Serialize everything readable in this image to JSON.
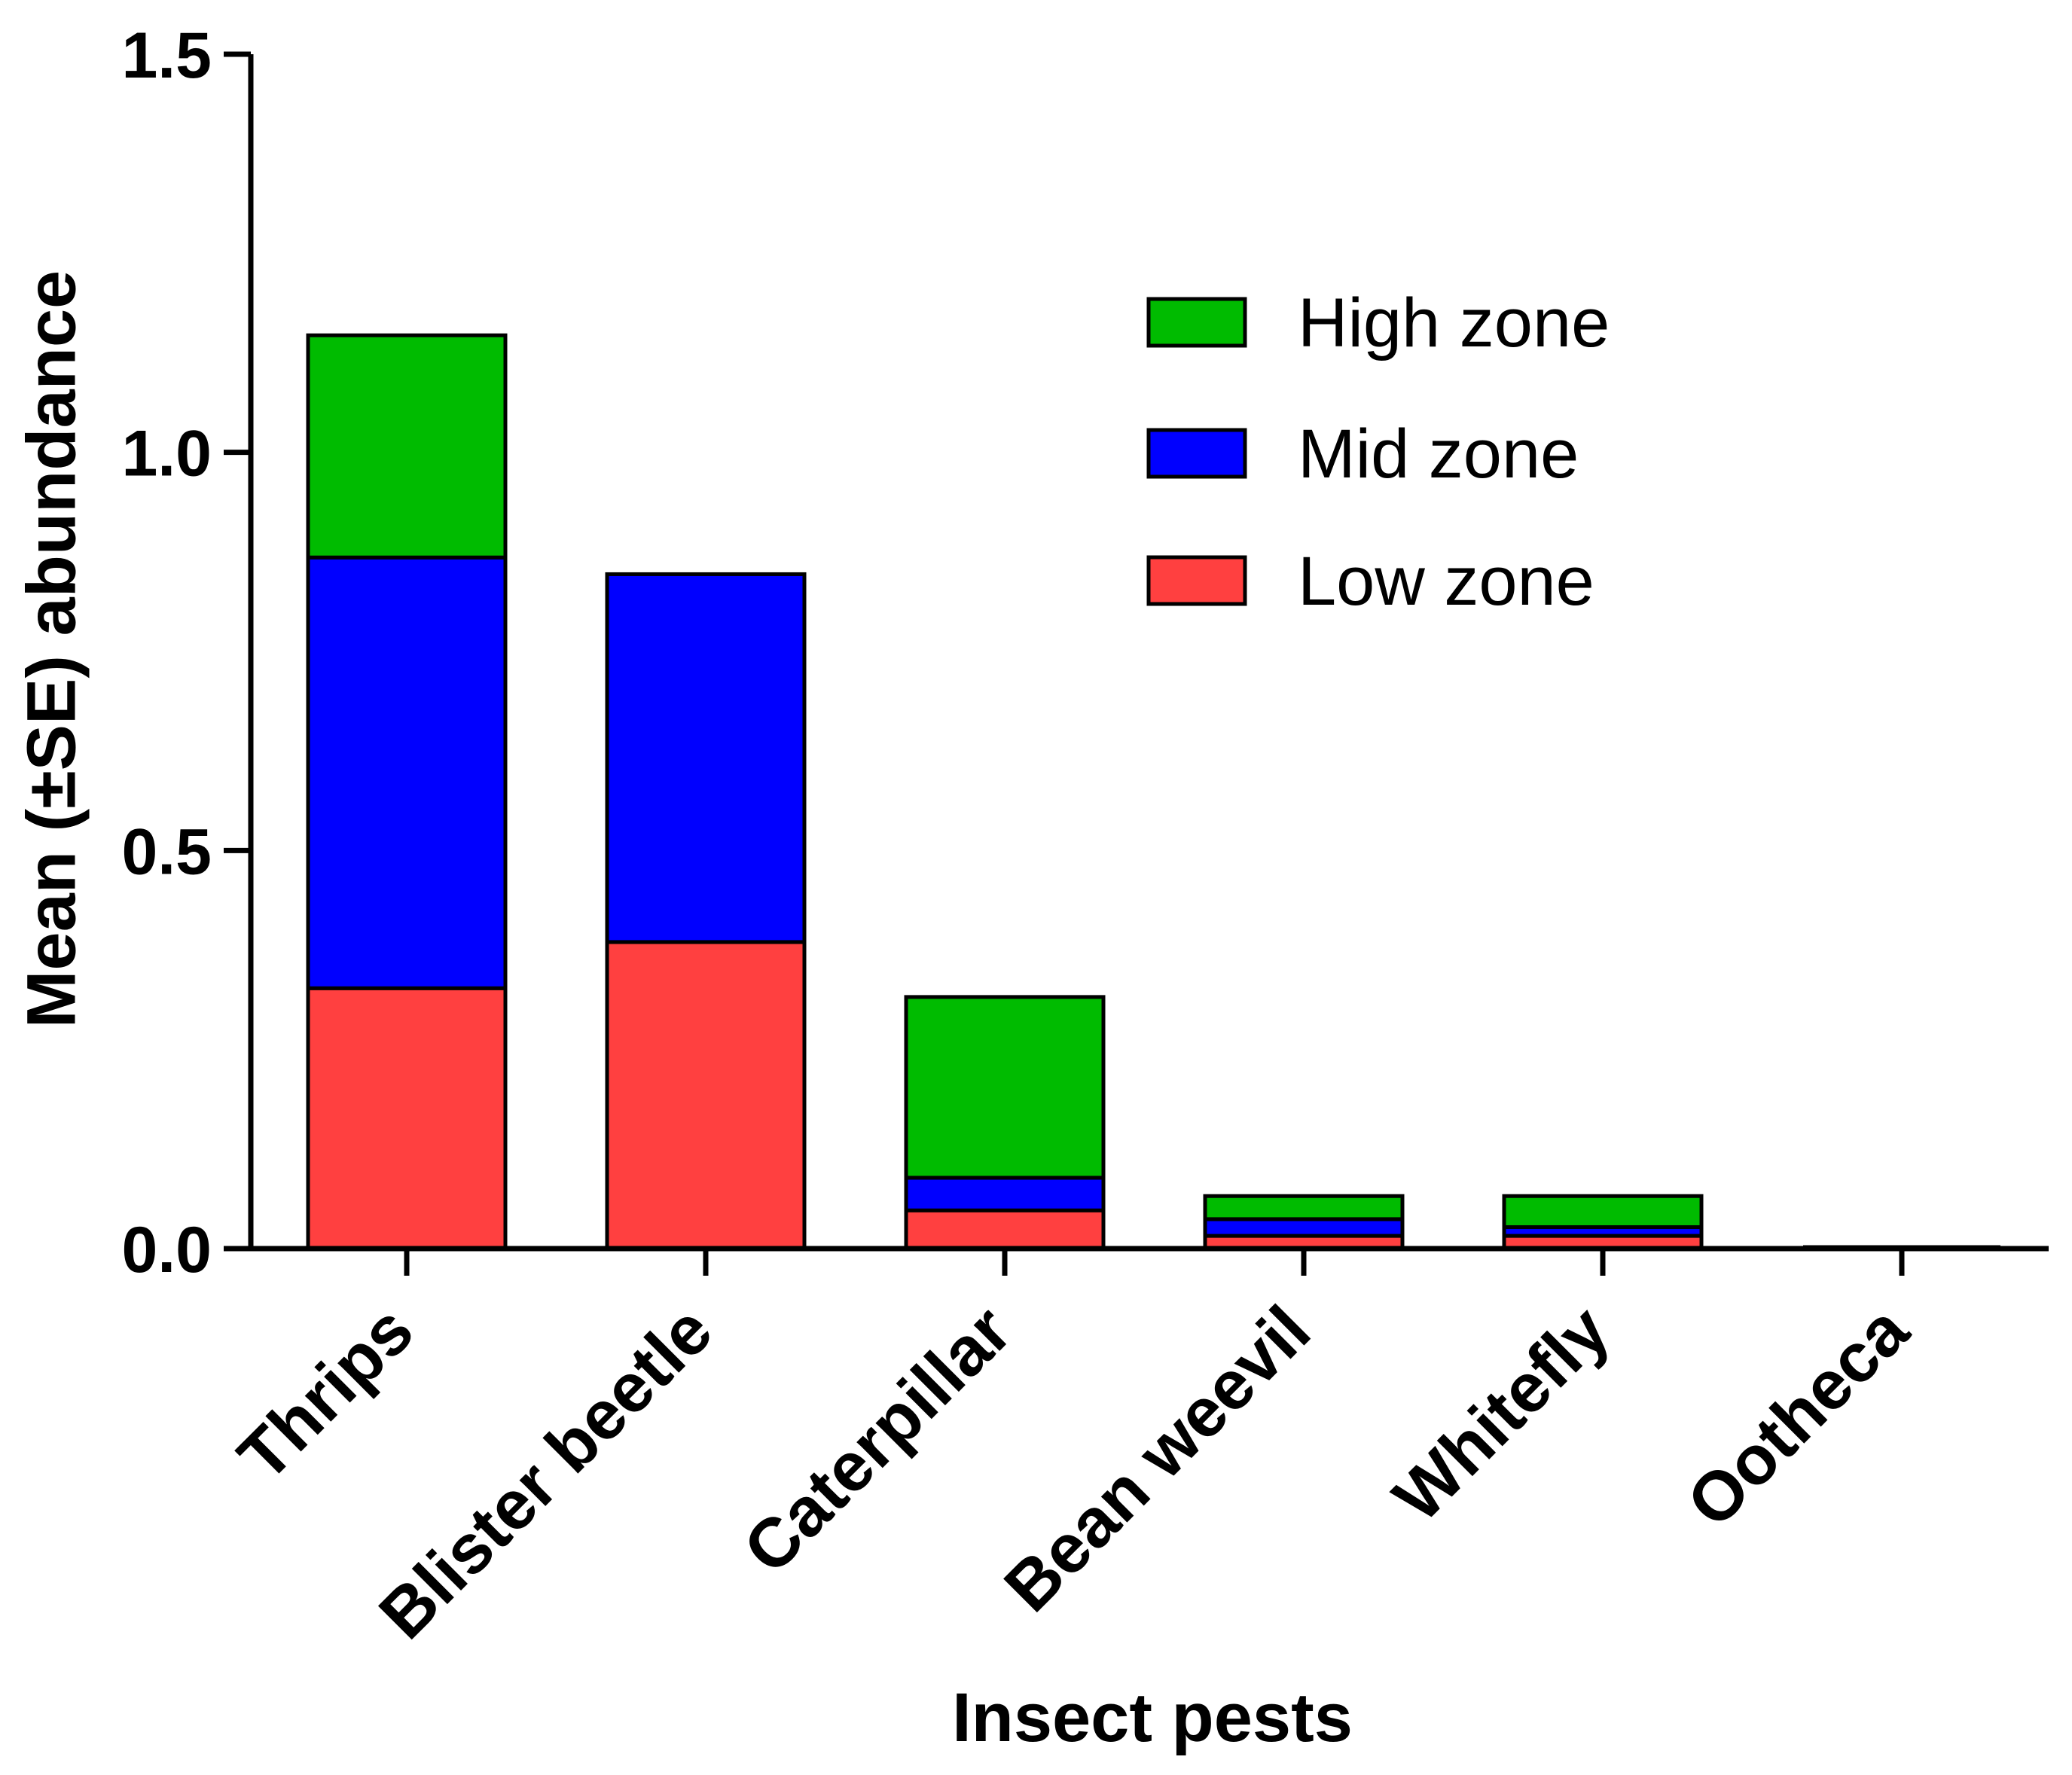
{
  "chart_data": {
    "type": "bar",
    "stacked": true,
    "categories": [
      "Thrips",
      "Blister beetle",
      "Caterpillar",
      "Bean weevil",
      "Whitefly",
      "Ootheca"
    ],
    "series": [
      {
        "name": "Low zone",
        "color": "#ff4040",
        "values": [
          0.327,
          0.385,
          0.048,
          0.016,
          0.016,
          0.0
        ]
      },
      {
        "name": "Mid zone",
        "color": "#0000ff",
        "values": [
          0.541,
          0.462,
          0.041,
          0.021,
          0.011,
          0.0
        ]
      },
      {
        "name": "High zone",
        "color": "#00bb00",
        "values": [
          0.279,
          0.0,
          0.227,
          0.029,
          0.039,
          0.0
        ]
      }
    ],
    "legend_order": [
      "High zone",
      "Mid zone",
      "Low zone"
    ],
    "title": "",
    "xlabel": "Insect pests",
    "ylabel": "Mean (±SE) abundance",
    "ylim": [
      0,
      1.5
    ],
    "yticks": [
      0.0,
      0.5,
      1.0,
      1.5
    ],
    "ytick_labels": [
      "0.0",
      "0.5",
      "1.0",
      "1.5"
    ],
    "legend_position": "top-right",
    "grid": false
  }
}
